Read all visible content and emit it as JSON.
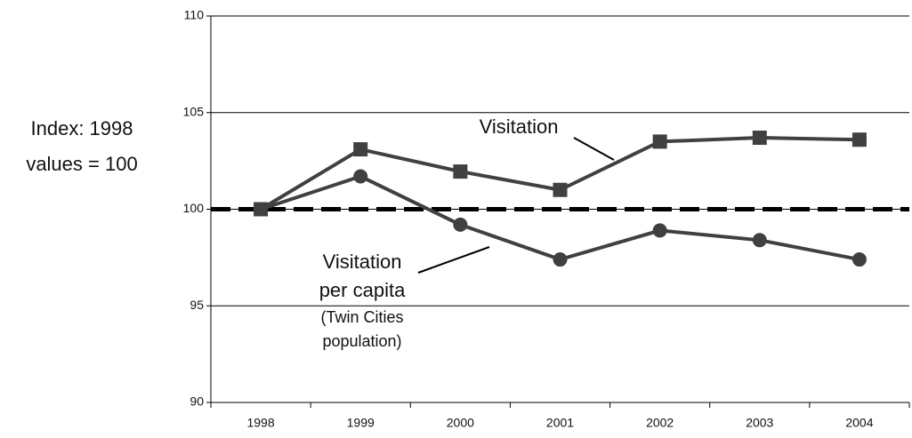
{
  "chart_data": {
    "type": "line",
    "y_label": [
      "Index: 1998",
      "values = 100"
    ],
    "categories": [
      "1998",
      "1999",
      "2000",
      "2001",
      "2002",
      "2003",
      "2004"
    ],
    "series": [
      {
        "color": "#404040",
        "marker": "square",
        "values": [
          100,
          103.1,
          101.95,
          101.0,
          103.5,
          103.7,
          103.6
        ]
      },
      {
        "color": "#404040",
        "marker": "circle",
        "values": [
          100,
          101.7,
          99.2,
          97.4,
          98.9,
          98.4,
          97.4
        ]
      }
    ],
    "reference_line": {
      "value": 100,
      "color": "#000000",
      "style": "dashed"
    },
    "annotations": [
      {
        "lines": [
          "Visitation"
        ]
      },
      {
        "lines": [
          "Visitation",
          "per capita"
        ]
      },
      {
        "lines": [
          "(Twin Cities",
          "population)"
        ]
      }
    ],
    "ylim": [
      90,
      110
    ],
    "yticks": [
      90,
      95,
      100,
      105,
      110
    ],
    "grid": true
  }
}
